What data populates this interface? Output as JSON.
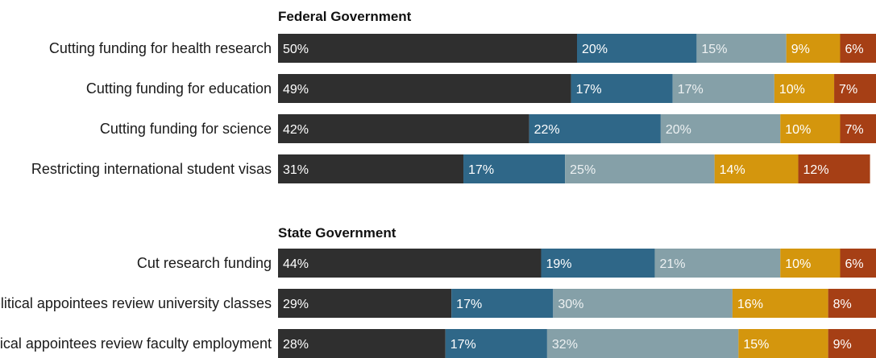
{
  "chart_data": [
    {
      "type": "bar",
      "orientation": "horizontal",
      "stacked": true,
      "title": "Federal Government",
      "categories": [
        "Cutting funding for health research",
        "Cutting funding for education",
        "Cutting funding for science",
        "Restricting international student visas"
      ],
      "series": [
        {
          "color": "#2f2f2f",
          "values": [
            50,
            49,
            42,
            31
          ]
        },
        {
          "color": "#2f6788",
          "values": [
            20,
            17,
            22,
            17
          ]
        },
        {
          "color": "#85a0a8",
          "values": [
            15,
            17,
            20,
            25
          ]
        },
        {
          "color": "#d4960d",
          "values": [
            9,
            10,
            10,
            14
          ]
        },
        {
          "color": "#a63f15",
          "values": [
            6,
            7,
            7,
            12
          ]
        }
      ],
      "value_suffix": "%",
      "xlim": [
        0,
        100
      ]
    },
    {
      "type": "bar",
      "orientation": "horizontal",
      "stacked": true,
      "title": "State Government",
      "categories": [
        "Cut research funding",
        "Political appointees review university classes",
        "Political appointees review faculty employment"
      ],
      "series": [
        {
          "color": "#2f2f2f",
          "values": [
            44,
            29,
            28
          ]
        },
        {
          "color": "#2f6788",
          "values": [
            19,
            17,
            17
          ]
        },
        {
          "color": "#85a0a8",
          "values": [
            21,
            30,
            32
          ]
        },
        {
          "color": "#d4960d",
          "values": [
            10,
            16,
            15
          ]
        },
        {
          "color": "#a63f15",
          "values": [
            6,
            8,
            9
          ]
        }
      ],
      "value_suffix": "%",
      "xlim": [
        0,
        100
      ]
    }
  ]
}
